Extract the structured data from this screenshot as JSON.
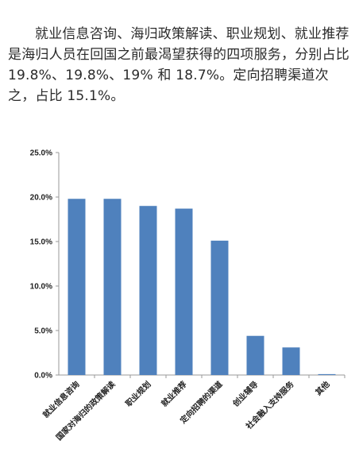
{
  "article": {
    "paragraph": "就业信息咨询、海归政策解读、职业规划、就业推荐是海归人员在回国之前最渴望获得的四项服务，分别占比 19.8%、19.8%、19% 和 18.7%。定向招聘渠道次之，占比 15.1%。"
  },
  "chart_data": {
    "type": "bar",
    "categories": [
      "就业信息咨询",
      "国家对海归的政策解读",
      "职业规划",
      "就业推荐",
      "定向招聘的渠道",
      "创业辅导",
      "社会融入支持服务",
      "其他"
    ],
    "values": [
      19.8,
      19.8,
      19.0,
      18.7,
      15.1,
      4.4,
      3.1,
      0.1
    ],
    "yticks": [
      "0.0%",
      "5.0%",
      "10.0%",
      "15.0%",
      "20.0%",
      "25.0%"
    ],
    "ylim": [
      0,
      25
    ],
    "grid": false,
    "legend": "none",
    "bar_color": "#4f81bd",
    "title": "",
    "xlabel": "",
    "ylabel": ""
  }
}
